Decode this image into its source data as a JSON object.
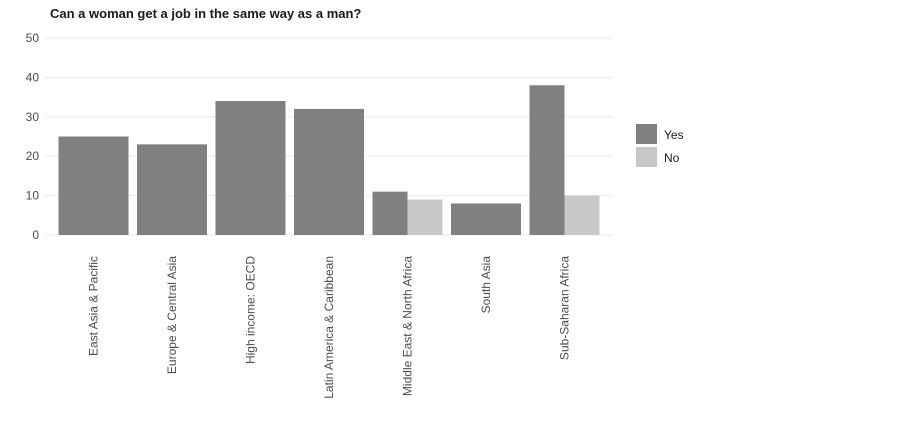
{
  "chart_data": {
    "type": "bar",
    "title": "Can a woman get a job in the same way as a man?",
    "xlabel": "",
    "ylabel": "",
    "ylim": [
      0,
      50
    ],
    "yticks": [
      0,
      10,
      20,
      30,
      40,
      50
    ],
    "grid": true,
    "legend_position": "right",
    "categories": [
      "East Asia & Pacific",
      "Europe & Central Asia",
      "High income: OECD",
      "Latin America & Caribbean",
      "Middle East & North Africa",
      "South Asia",
      "Sub-Saharan Africa"
    ],
    "series": [
      {
        "name": "Yes",
        "color": "#808080",
        "values": [
          25,
          23,
          34,
          32,
          11,
          8,
          38
        ]
      },
      {
        "name": "No",
        "color": "#c8c8c8",
        "values": [
          0,
          0,
          0,
          0,
          9,
          0,
          10
        ]
      }
    ]
  }
}
